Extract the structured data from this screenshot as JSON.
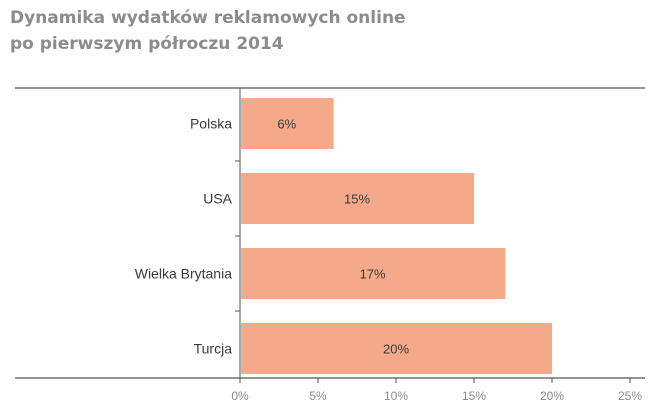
{
  "chart_data": {
    "type": "bar",
    "orientation": "horizontal",
    "title_lines": [
      "Dynamika wydatków reklamowych online",
      "po pierwszym półroczu 2014"
    ],
    "categories": [
      "Polska",
      "USA",
      "Wielka Brytania",
      "Turcja"
    ],
    "values": [
      6,
      15,
      17,
      20
    ],
    "data_labels": [
      "6%",
      "15%",
      "17%",
      "20%"
    ],
    "xlim": [
      0,
      25
    ],
    "x_ticks": [
      0,
      5,
      10,
      15,
      20,
      25
    ],
    "x_tick_labels": [
      "0%",
      "5%",
      "10%",
      "15%",
      "20%",
      "25%"
    ],
    "grid": false,
    "colors": {
      "bar": "#f4a98a",
      "axis": "#555555",
      "title": "#8c8c8c"
    }
  }
}
